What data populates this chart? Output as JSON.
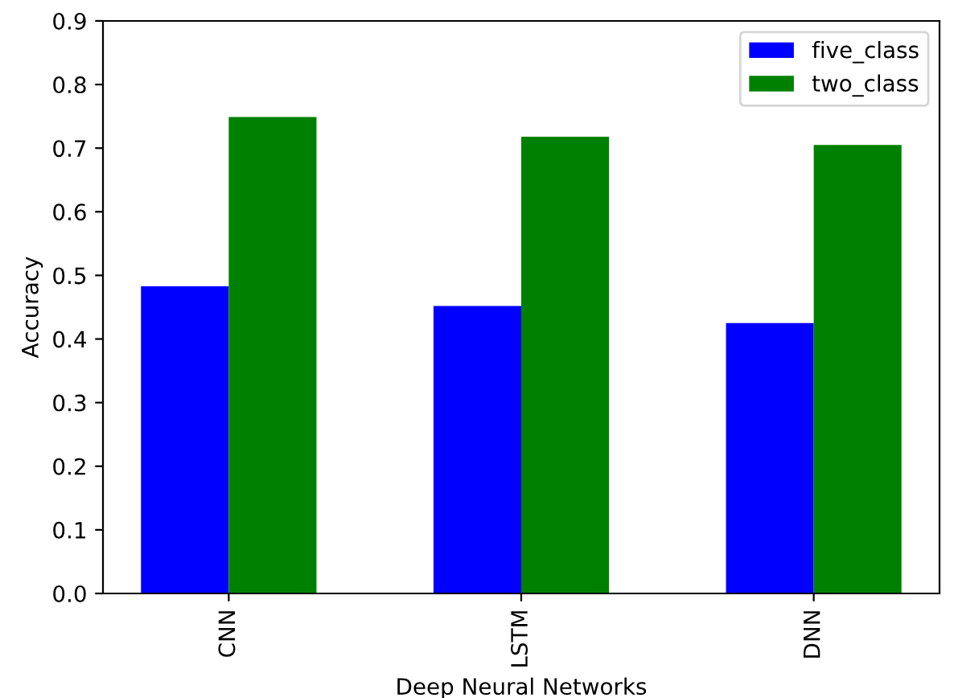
{
  "chart_data": {
    "type": "bar",
    "xlabel": "Deep Neural Networks",
    "ylabel": "Accuracy",
    "categories": [
      "CNN",
      "LSTM",
      "DNN"
    ],
    "series": [
      {
        "name": "five_class",
        "color": "#0000ff",
        "values": [
          0.483,
          0.452,
          0.425
        ]
      },
      {
        "name": "two_class",
        "color": "#008000",
        "values": [
          0.749,
          0.718,
          0.705
        ]
      }
    ],
    "ylim": [
      0,
      0.9
    ],
    "yticks": [
      {
        "value": 0,
        "label": "0.0"
      },
      0.1,
      0.2,
      0.3,
      0.4,
      0.5,
      0.6,
      0.7,
      0.8,
      0.9
    ],
    "grid": false,
    "legend": "top right"
  }
}
